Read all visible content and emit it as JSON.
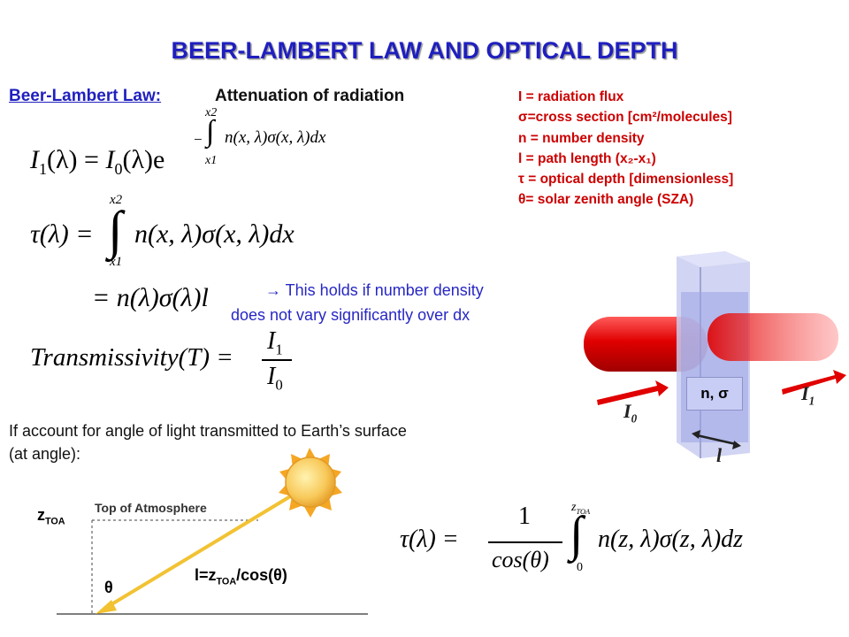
{
  "slide": {
    "title": "BEER-LAMBERT  LAW AND OPTICAL DEPTH",
    "law_label": "Beer-Lambert Law:",
    "law_desc": "Attenuation of radiation"
  },
  "definitions": [
    "I = radiation flux",
    "σ=cross section [cm²/molecules]",
    "n = number density",
    "l = path length  (x₂-x₁)",
    "τ = optical depth [dimensionless]",
    " θ= solar zenith angle (SZA)"
  ],
  "eq1": {
    "lhs": "I",
    "lhs_sub": "1",
    "lhs_arg": "(λ) = ",
    "rhs": "I",
    "rhs_sub": "0",
    "rhs_arg": "(λ)e",
    "exp_upper": "x2",
    "exp_lower": "x1",
    "exp_body": "n(x, λ)σ(x, λ)dx",
    "exp_sign": "−"
  },
  "eq2": {
    "lhs": "τ(λ) = ",
    "upper": "x2",
    "lower": "x1",
    "body": "n(x, λ)σ(x, λ)dx"
  },
  "eq3": {
    "body": "= n(λ)σ(λ)l"
  },
  "note": {
    "line1": "  This holds if number density",
    "line2": "does not vary significantly over dx"
  },
  "eq4": {
    "lhs": "Transmissivity(T) = ",
    "num": "I",
    "num_sub": "1",
    "den": "I",
    "den_sub": "0"
  },
  "angle_text": {
    "line1": "If account for angle of light transmitted to Earth’s surface",
    "line2": "(at angle):"
  },
  "diagram": {
    "cube_label": "n, σ",
    "i0": "I",
    "i0_sub": "0",
    "i1": "I",
    "i1_sub": "1",
    "l": "l"
  },
  "geometry": {
    "z_label": "z",
    "z_sub": "TOA",
    "toa_label": "Top of Atmosphere",
    "path_label": "l=z",
    "path_sub": "TOA",
    "path_tail": "/cos(θ)",
    "theta": "θ"
  },
  "eq5": {
    "lhs": "τ(λ) = ",
    "num": "1",
    "den": "cos(θ)",
    "upper": "z",
    "upper_sub": "TOA",
    "lower": "0",
    "body": "n(z, λ)σ(z, λ)dz"
  },
  "colors": {
    "title": "#1f1fbf",
    "defs": "#cc0000",
    "note": "#2727c4",
    "beam": "#e00000",
    "sunray": "#f2c233"
  }
}
